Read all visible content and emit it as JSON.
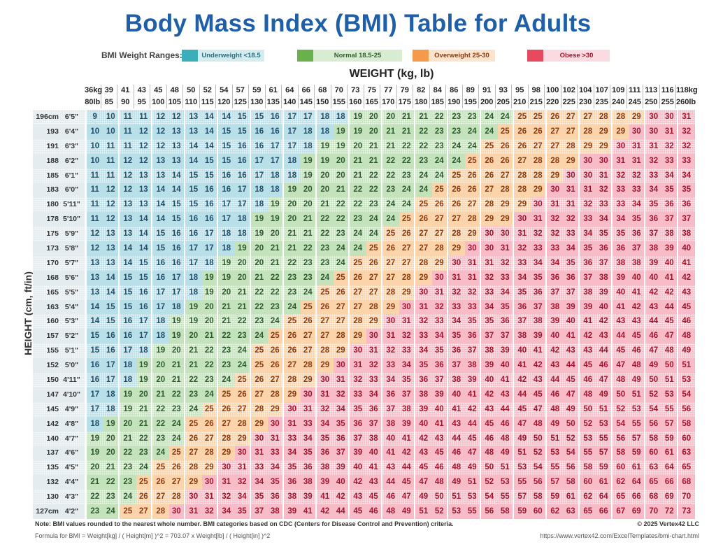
{
  "title": "Body Mass Index (BMI) Table for Adults",
  "legend": {
    "label": "BMI Weight Ranges:",
    "items": [
      {
        "label": "Underweight  <18.5",
        "swatch": "#3aafb9",
        "bg": "#d3ecef",
        "text": "#2a6f80"
      },
      {
        "label": "Normal  18.5-25",
        "swatch": "#6ab04c",
        "bg": "#d8ecd2",
        "text": "#2f5f2a"
      },
      {
        "label": "Overweight  25-30",
        "swatch": "#f39a4b",
        "bg": "#fde3cc",
        "text": "#8b3a0f"
      },
      {
        "label": "Obese  >30",
        "swatch": "#e8495f",
        "bg": "#fbdbe1",
        "text": "#a0152e"
      }
    ]
  },
  "category_colors": {
    "underweight": {
      "bg": "#b9dfe9",
      "text": "#1f4f6b"
    },
    "normal": {
      "bg": "#c4e3bd",
      "text": "#2d5a2d"
    },
    "overweight": {
      "bg": "#fbd4ab",
      "text": "#8b3a0f"
    },
    "obese": {
      "bg": "#f8bcc8",
      "text": "#a0152e"
    }
  },
  "weight_title": "WEIGHT (kg, lb)",
  "height_title": "HEIGHT (cm, ft/in)",
  "weights": [
    {
      "kg": "36kg",
      "lb": "80lb"
    },
    {
      "kg": "39",
      "lb": "85"
    },
    {
      "kg": "41",
      "lb": "90"
    },
    {
      "kg": "43",
      "lb": "95"
    },
    {
      "kg": "45",
      "lb": "100"
    },
    {
      "kg": "48",
      "lb": "105"
    },
    {
      "kg": "50",
      "lb": "110"
    },
    {
      "kg": "52",
      "lb": "115"
    },
    {
      "kg": "54",
      "lb": "120"
    },
    {
      "kg": "57",
      "lb": "125"
    },
    {
      "kg": "59",
      "lb": "130"
    },
    {
      "kg": "61",
      "lb": "135"
    },
    {
      "kg": "64",
      "lb": "140"
    },
    {
      "kg": "66",
      "lb": "145"
    },
    {
      "kg": "68",
      "lb": "150"
    },
    {
      "kg": "70",
      "lb": "155"
    },
    {
      "kg": "73",
      "lb": "160"
    },
    {
      "kg": "75",
      "lb": "165"
    },
    {
      "kg": "77",
      "lb": "170"
    },
    {
      "kg": "79",
      "lb": "175"
    },
    {
      "kg": "82",
      "lb": "180"
    },
    {
      "kg": "84",
      "lb": "185"
    },
    {
      "kg": "86",
      "lb": "190"
    },
    {
      "kg": "89",
      "lb": "195"
    },
    {
      "kg": "91",
      "lb": "200"
    },
    {
      "kg": "93",
      "lb": "205"
    },
    {
      "kg": "95",
      "lb": "210"
    },
    {
      "kg": "98",
      "lb": "215"
    },
    {
      "kg": "100",
      "lb": "220"
    },
    {
      "kg": "102",
      "lb": "225"
    },
    {
      "kg": "104",
      "lb": "230"
    },
    {
      "kg": "107",
      "lb": "235"
    },
    {
      "kg": "109",
      "lb": "240"
    },
    {
      "kg": "111",
      "lb": "245"
    },
    {
      "kg": "113",
      "lb": "250"
    },
    {
      "kg": "116",
      "lb": "255"
    },
    {
      "kg": "118kg",
      "lb": "260lb"
    }
  ],
  "rows": [
    {
      "cm": "196cm",
      "ftin": "6'5\"",
      "bmi": [
        9,
        10,
        11,
        11,
        12,
        12,
        13,
        14,
        14,
        15,
        15,
        16,
        17,
        17,
        18,
        18,
        19,
        20,
        20,
        21,
        21,
        22,
        23,
        23,
        24,
        24,
        25,
        25,
        26,
        27,
        27,
        28,
        28,
        29,
        30,
        30,
        31
      ]
    },
    {
      "cm": "193",
      "ftin": "6'4\"",
      "bmi": [
        10,
        10,
        11,
        12,
        12,
        13,
        13,
        14,
        15,
        15,
        16,
        16,
        17,
        18,
        18,
        19,
        19,
        20,
        21,
        21,
        22,
        23,
        23,
        24,
        24,
        25,
        26,
        26,
        27,
        27,
        28,
        29,
        29,
        30,
        30,
        31,
        32
      ]
    },
    {
      "cm": "191",
      "ftin": "6'3\"",
      "bmi": [
        10,
        11,
        11,
        12,
        12,
        13,
        14,
        14,
        15,
        16,
        16,
        17,
        17,
        18,
        19,
        19,
        20,
        21,
        21,
        22,
        22,
        23,
        24,
        24,
        25,
        26,
        26,
        27,
        27,
        28,
        29,
        29,
        30,
        31,
        31,
        32,
        32
      ]
    },
    {
      "cm": "188",
      "ftin": "6'2\"",
      "bmi": [
        10,
        11,
        12,
        12,
        13,
        13,
        14,
        15,
        15,
        16,
        17,
        17,
        18,
        19,
        19,
        20,
        21,
        21,
        22,
        22,
        23,
        24,
        24,
        25,
        26,
        26,
        27,
        28,
        28,
        29,
        30,
        30,
        31,
        31,
        32,
        33,
        33
      ]
    },
    {
      "cm": "185",
      "ftin": "6'1\"",
      "bmi": [
        11,
        11,
        12,
        13,
        13,
        14,
        15,
        15,
        16,
        16,
        17,
        18,
        18,
        19,
        20,
        20,
        21,
        22,
        22,
        23,
        24,
        24,
        25,
        26,
        26,
        27,
        28,
        28,
        29,
        30,
        30,
        31,
        32,
        32,
        33,
        34,
        34
      ]
    },
    {
      "cm": "183",
      "ftin": "6'0\"",
      "bmi": [
        11,
        12,
        12,
        13,
        14,
        14,
        15,
        16,
        16,
        17,
        18,
        18,
        19,
        20,
        20,
        21,
        22,
        22,
        23,
        24,
        24,
        25,
        26,
        26,
        27,
        28,
        28,
        29,
        30,
        31,
        31,
        32,
        33,
        33,
        34,
        35,
        35
      ]
    },
    {
      "cm": "180",
      "ftin": "5'11\"",
      "bmi": [
        11,
        12,
        13,
        13,
        14,
        15,
        15,
        16,
        17,
        17,
        18,
        19,
        20,
        20,
        21,
        22,
        22,
        23,
        24,
        24,
        25,
        26,
        26,
        27,
        28,
        29,
        29,
        30,
        31,
        31,
        32,
        33,
        33,
        34,
        35,
        36,
        36
      ]
    },
    {
      "cm": "178",
      "ftin": "5'10\"",
      "bmi": [
        11,
        12,
        13,
        14,
        14,
        15,
        16,
        16,
        17,
        18,
        19,
        19,
        20,
        21,
        22,
        22,
        23,
        24,
        24,
        25,
        26,
        27,
        27,
        28,
        29,
        29,
        30,
        31,
        32,
        32,
        33,
        34,
        34,
        35,
        36,
        37,
        37
      ]
    },
    {
      "cm": "175",
      "ftin": "5'9\"",
      "bmi": [
        12,
        13,
        13,
        14,
        15,
        16,
        16,
        17,
        18,
        18,
        19,
        20,
        21,
        21,
        22,
        23,
        24,
        24,
        25,
        26,
        27,
        27,
        28,
        29,
        30,
        30,
        31,
        32,
        32,
        33,
        34,
        35,
        35,
        36,
        37,
        38,
        38
      ]
    },
    {
      "cm": "173",
      "ftin": "5'8\"",
      "bmi": [
        12,
        13,
        14,
        14,
        15,
        16,
        17,
        17,
        18,
        19,
        20,
        21,
        21,
        22,
        23,
        24,
        24,
        25,
        26,
        27,
        27,
        28,
        29,
        30,
        30,
        31,
        32,
        33,
        33,
        34,
        35,
        36,
        36,
        37,
        38,
        39,
        40
      ]
    },
    {
      "cm": "170",
      "ftin": "5'7\"",
      "bmi": [
        13,
        13,
        14,
        15,
        16,
        16,
        17,
        18,
        19,
        20,
        20,
        21,
        22,
        23,
        23,
        24,
        25,
        26,
        27,
        27,
        28,
        29,
        30,
        31,
        31,
        32,
        33,
        34,
        34,
        35,
        36,
        37,
        38,
        38,
        39,
        40,
        41
      ]
    },
    {
      "cm": "168",
      "ftin": "5'6\"",
      "bmi": [
        13,
        14,
        15,
        15,
        16,
        17,
        18,
        19,
        19,
        20,
        21,
        22,
        23,
        23,
        24,
        25,
        26,
        27,
        27,
        28,
        29,
        30,
        31,
        31,
        32,
        33,
        34,
        35,
        36,
        36,
        37,
        38,
        39,
        40,
        40,
        41,
        42
      ]
    },
    {
      "cm": "165",
      "ftin": "5'5\"",
      "bmi": [
        13,
        14,
        15,
        16,
        17,
        17,
        18,
        19,
        20,
        21,
        22,
        22,
        23,
        24,
        25,
        26,
        27,
        27,
        28,
        29,
        30,
        31,
        32,
        32,
        33,
        34,
        35,
        36,
        37,
        37,
        38,
        39,
        40,
        41,
        42,
        42,
        43
      ]
    },
    {
      "cm": "163",
      "ftin": "5'4\"",
      "bmi": [
        14,
        15,
        15,
        16,
        17,
        18,
        19,
        20,
        21,
        21,
        22,
        23,
        24,
        25,
        26,
        27,
        27,
        28,
        29,
        30,
        31,
        32,
        33,
        33,
        34,
        35,
        36,
        37,
        38,
        39,
        39,
        40,
        41,
        42,
        43,
        44,
        45
      ]
    },
    {
      "cm": "160",
      "ftin": "5'3\"",
      "bmi": [
        14,
        15,
        16,
        17,
        18,
        19,
        19,
        20,
        21,
        22,
        23,
        24,
        25,
        26,
        27,
        27,
        28,
        29,
        30,
        31,
        32,
        33,
        34,
        35,
        35,
        36,
        37,
        38,
        39,
        40,
        41,
        42,
        43,
        43,
        44,
        45,
        46
      ]
    },
    {
      "cm": "157",
      "ftin": "5'2\"",
      "bmi": [
        15,
        16,
        16,
        17,
        18,
        19,
        20,
        21,
        22,
        23,
        24,
        25,
        26,
        27,
        27,
        28,
        29,
        30,
        31,
        32,
        33,
        34,
        35,
        36,
        37,
        37,
        38,
        39,
        40,
        41,
        42,
        43,
        44,
        45,
        46,
        47,
        48
      ]
    },
    {
      "cm": "155",
      "ftin": "5'1\"",
      "bmi": [
        15,
        16,
        17,
        18,
        19,
        20,
        21,
        22,
        23,
        24,
        25,
        26,
        26,
        27,
        28,
        29,
        30,
        31,
        32,
        33,
        34,
        35,
        36,
        37,
        38,
        39,
        40,
        41,
        42,
        43,
        43,
        44,
        45,
        46,
        47,
        48,
        49
      ]
    },
    {
      "cm": "152",
      "ftin": "5'0\"",
      "bmi": [
        16,
        17,
        18,
        19,
        20,
        21,
        21,
        22,
        23,
        24,
        25,
        26,
        27,
        28,
        29,
        30,
        31,
        32,
        33,
        34,
        35,
        36,
        37,
        38,
        39,
        40,
        41,
        42,
        43,
        44,
        45,
        46,
        47,
        48,
        49,
        50,
        51
      ]
    },
    {
      "cm": "150",
      "ftin": "4'11\"",
      "bmi": [
        16,
        17,
        18,
        19,
        20,
        21,
        22,
        23,
        24,
        25,
        26,
        27,
        28,
        29,
        30,
        31,
        32,
        33,
        34,
        35,
        36,
        37,
        38,
        39,
        40,
        41,
        42,
        43,
        44,
        45,
        46,
        47,
        48,
        49,
        50,
        51,
        53
      ]
    },
    {
      "cm": "147",
      "ftin": "4'10\"",
      "bmi": [
        17,
        18,
        19,
        20,
        21,
        22,
        23,
        24,
        25,
        26,
        27,
        28,
        29,
        30,
        31,
        32,
        33,
        34,
        36,
        37,
        38,
        39,
        40,
        41,
        42,
        43,
        44,
        45,
        46,
        47,
        48,
        49,
        50,
        51,
        52,
        53,
        54
      ]
    },
    {
      "cm": "145",
      "ftin": "4'9\"",
      "bmi": [
        17,
        18,
        19,
        21,
        22,
        23,
        24,
        25,
        26,
        27,
        28,
        29,
        30,
        31,
        32,
        34,
        35,
        36,
        37,
        38,
        39,
        40,
        41,
        42,
        43,
        44,
        45,
        47,
        48,
        49,
        50,
        51,
        52,
        53,
        54,
        55,
        56
      ]
    },
    {
      "cm": "142",
      "ftin": "4'8\"",
      "bmi": [
        18,
        19,
        20,
        21,
        22,
        24,
        25,
        26,
        27,
        28,
        29,
        30,
        31,
        33,
        34,
        35,
        36,
        37,
        38,
        39,
        40,
        41,
        43,
        44,
        45,
        46,
        47,
        48,
        49,
        50,
        52,
        53,
        54,
        55,
        56,
        57,
        58
      ]
    },
    {
      "cm": "140",
      "ftin": "4'7\"",
      "bmi": [
        19,
        20,
        21,
        22,
        23,
        24,
        26,
        27,
        28,
        29,
        30,
        31,
        33,
        34,
        35,
        36,
        37,
        38,
        40,
        41,
        42,
        43,
        44,
        45,
        46,
        48,
        49,
        50,
        51,
        52,
        53,
        55,
        56,
        57,
        58,
        59,
        60
      ]
    },
    {
      "cm": "137",
      "ftin": "4'6\"",
      "bmi": [
        19,
        20,
        22,
        23,
        24,
        25,
        27,
        28,
        29,
        30,
        31,
        33,
        34,
        35,
        36,
        37,
        39,
        40,
        41,
        42,
        43,
        45,
        46,
        47,
        48,
        49,
        51,
        52,
        53,
        54,
        55,
        57,
        58,
        59,
        60,
        61,
        63
      ]
    },
    {
      "cm": "135",
      "ftin": "4'5\"",
      "bmi": [
        20,
        21,
        23,
        24,
        25,
        26,
        28,
        29,
        30,
        31,
        33,
        34,
        35,
        36,
        38,
        39,
        40,
        41,
        43,
        44,
        45,
        46,
        48,
        49,
        50,
        51,
        53,
        54,
        55,
        56,
        58,
        59,
        60,
        61,
        63,
        64,
        65
      ]
    },
    {
      "cm": "132",
      "ftin": "4'4\"",
      "bmi": [
        21,
        22,
        23,
        25,
        26,
        27,
        29,
        30,
        31,
        32,
        34,
        35,
        36,
        38,
        39,
        40,
        42,
        43,
        44,
        45,
        47,
        48,
        49,
        51,
        52,
        53,
        55,
        56,
        57,
        58,
        60,
        61,
        62,
        64,
        65,
        66,
        68
      ]
    },
    {
      "cm": "130",
      "ftin": "4'3\"",
      "bmi": [
        22,
        23,
        24,
        26,
        27,
        28,
        30,
        31,
        32,
        34,
        35,
        36,
        38,
        39,
        41,
        42,
        43,
        45,
        46,
        47,
        49,
        50,
        51,
        53,
        54,
        55,
        57,
        58,
        59,
        61,
        62,
        64,
        65,
        66,
        68,
        69,
        70
      ]
    },
    {
      "cm": "127cm",
      "ftin": "4'2\"",
      "bmi": [
        23,
        24,
        25,
        27,
        28,
        30,
        31,
        32,
        34,
        35,
        37,
        38,
        39,
        41,
        42,
        44,
        45,
        46,
        48,
        49,
        51,
        52,
        53,
        55,
        56,
        58,
        59,
        60,
        62,
        63,
        65,
        66,
        67,
        69,
        70,
        72,
        73
      ]
    }
  ],
  "footer": {
    "note": "Note: BMI values rounded to the nearest whole number. BMI categories based on CDC (Centers for Disease Control and Prevention) criteria.",
    "copyright": "© 2025 Vertex42 LLC",
    "formula": "Formula for BMI = Weight[kg] / ( Height[m] )^2 = 703.07 x Weight[lb] / ( Height[in] )^2",
    "url": "https://www.vertex42.com/ExcelTemplates/bmi-chart.html"
  }
}
